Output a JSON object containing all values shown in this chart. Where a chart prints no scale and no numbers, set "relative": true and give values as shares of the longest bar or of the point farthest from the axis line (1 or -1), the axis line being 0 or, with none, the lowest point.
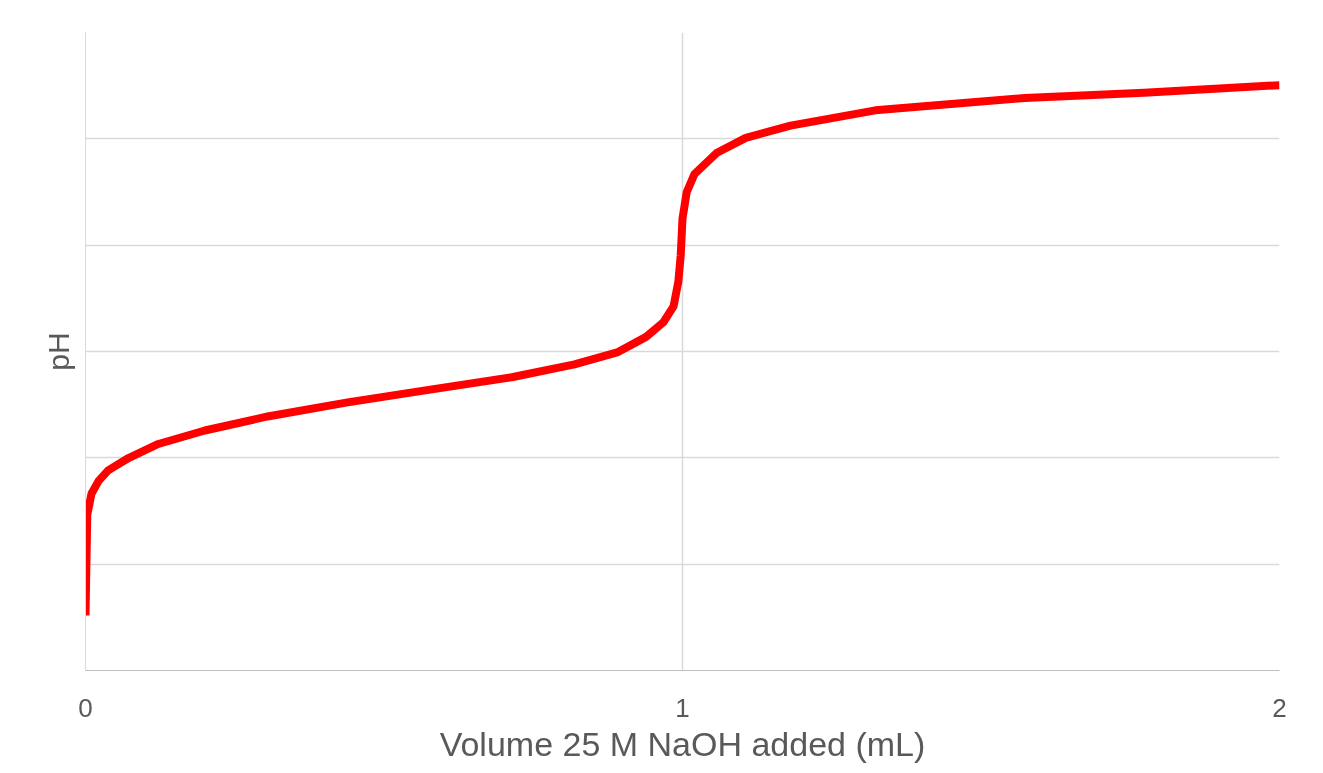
{
  "chart_data": {
    "type": "line",
    "relative": true,
    "xlabel": "Volume 25 M NaOH added (mL)",
    "ylabel": "pH",
    "xlim": [
      0,
      2
    ],
    "xticks": [
      0,
      1,
      2
    ],
    "tick_labels": "x",
    "grid": true,
    "marker": "none",
    "line_style": "solid",
    "series": [
      {
        "color": "#ff0000",
        "x": [
          0,
          0.003,
          0.01,
          0.022,
          0.038,
          0.072,
          0.122,
          0.2,
          0.305,
          0.439,
          0.572,
          0.714,
          0.819,
          0.892,
          0.939,
          0.968,
          0.985,
          0.993,
          0.997,
          1.0,
          1.007,
          1.02,
          1.057,
          1.106,
          1.181,
          1.323,
          1.573,
          1.773,
          2.0
        ],
        "values": [
          0.094,
          0.266,
          0.302,
          0.324,
          0.342,
          0.363,
          0.387,
          0.41,
          0.434,
          0.458,
          0.479,
          0.501,
          0.523,
          0.544,
          0.57,
          0.595,
          0.622,
          0.664,
          0.709,
          0.772,
          0.817,
          0.848,
          0.884,
          0.91,
          0.931,
          0.957,
          0.978,
          0.987,
          1.0
        ]
      }
    ]
  }
}
